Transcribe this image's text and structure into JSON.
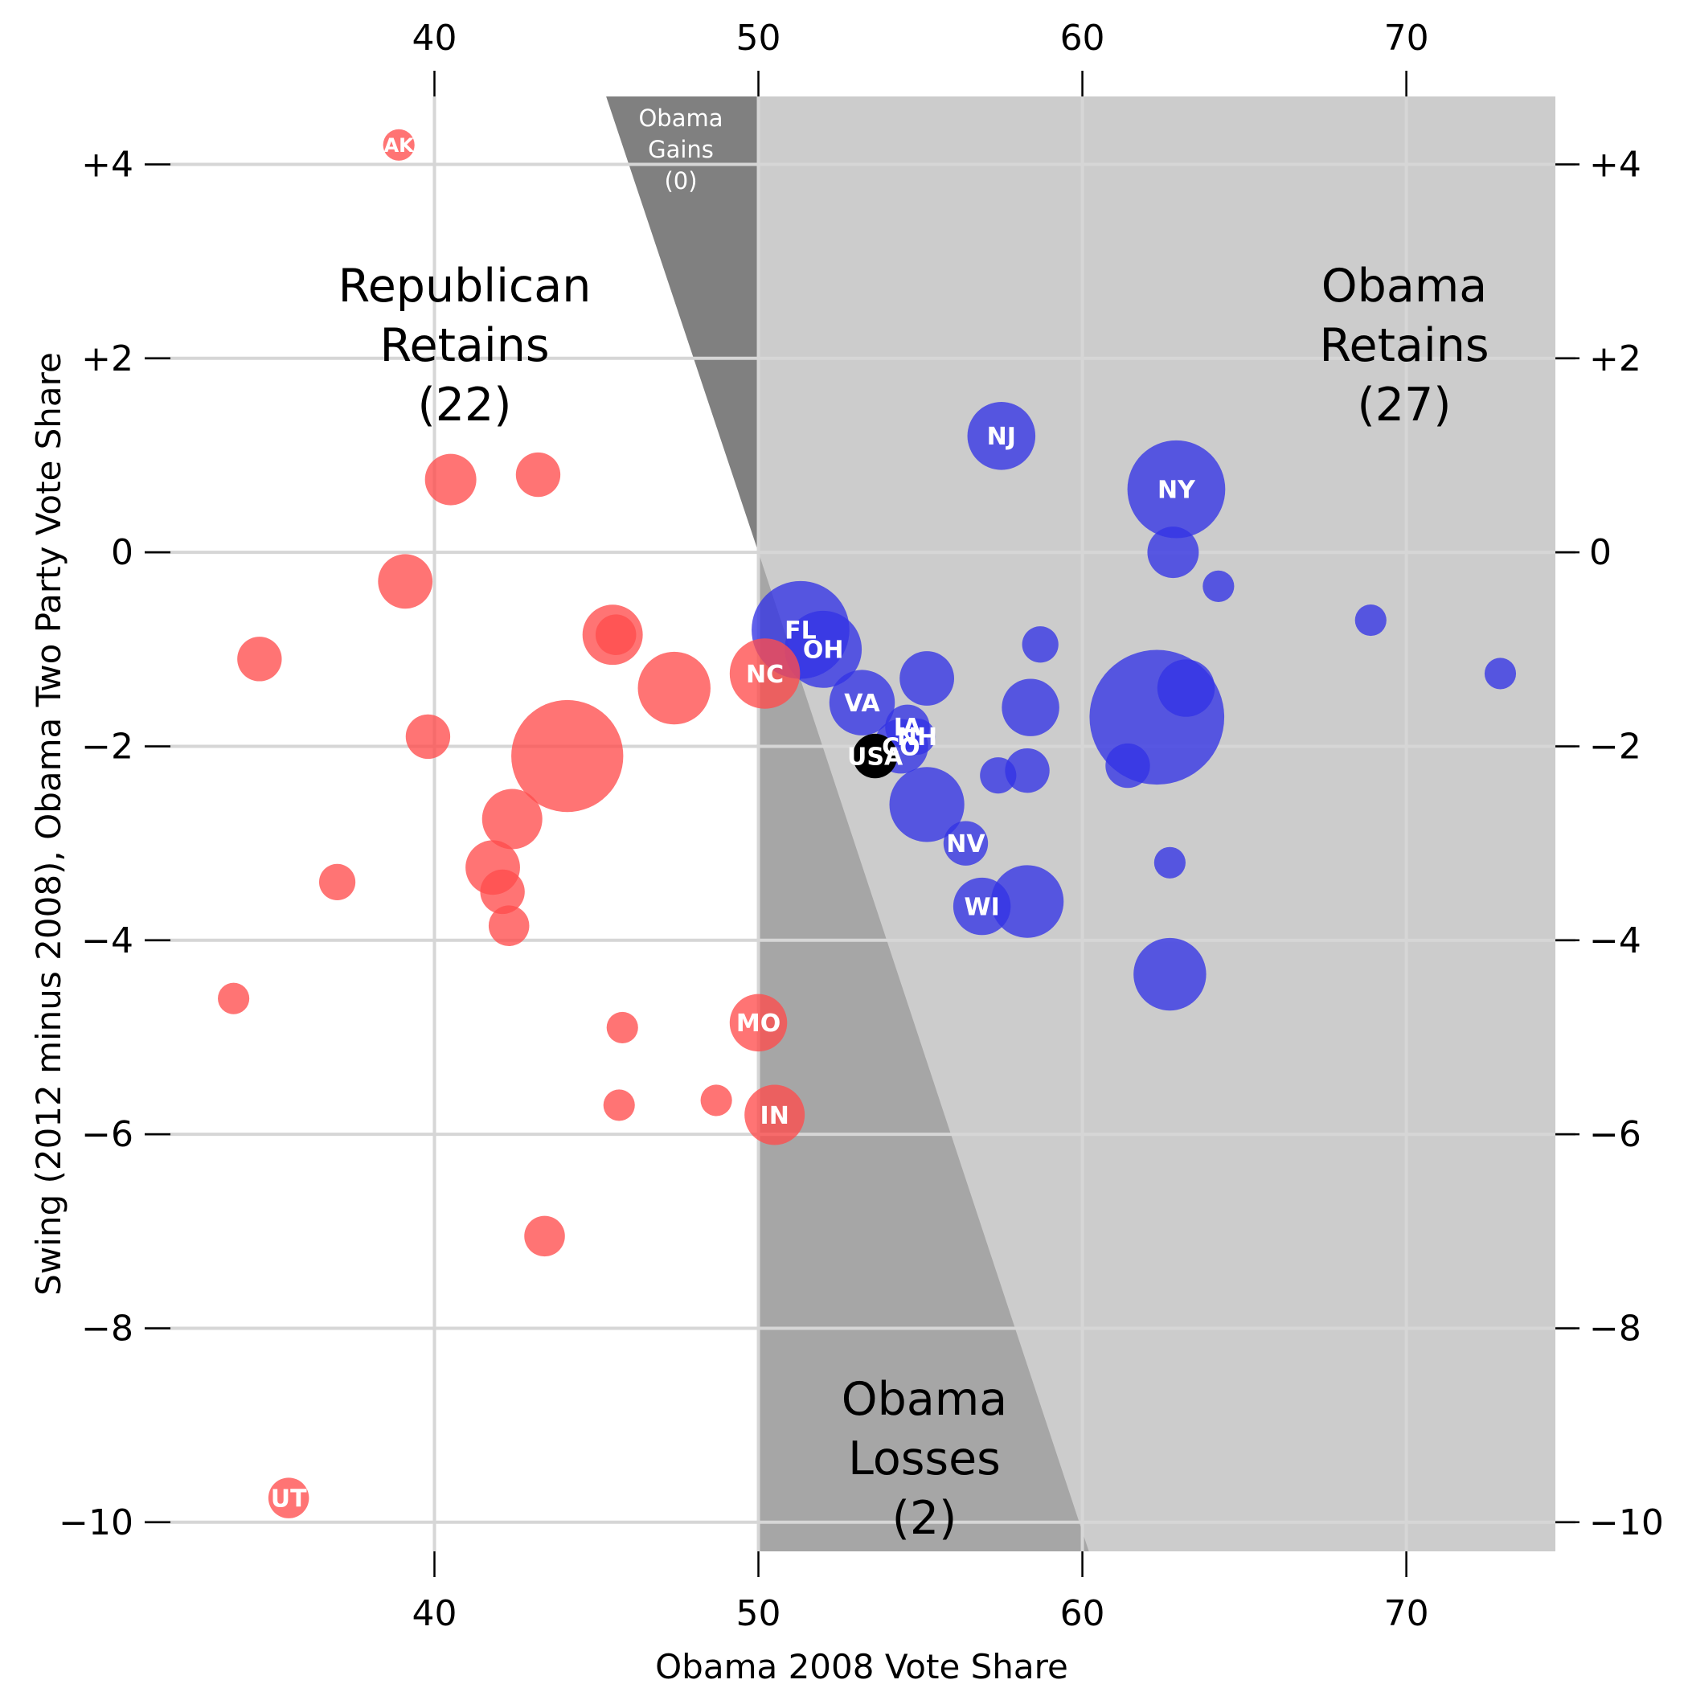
{
  "chart_data": {
    "type": "scatter",
    "title": "",
    "xlabel": "Obama 2008 Vote Share",
    "ylabel": "Swing (2012 minus 2008), Obama Two Party Vote Share",
    "xlim": [
      31.8,
      74.6
    ],
    "ylim": [
      -10.3,
      4.7
    ],
    "xticks": [
      {
        "value": 40,
        "label": "40"
      },
      {
        "value": 50,
        "label": "50"
      },
      {
        "value": 60,
        "label": "60"
      },
      {
        "value": 70,
        "label": "70"
      }
    ],
    "yticks": [
      {
        "value": 4,
        "label": "+4"
      },
      {
        "value": 2,
        "label": "+2"
      },
      {
        "value": 0,
        "label": "0"
      },
      {
        "value": -2,
        "label": "−2"
      },
      {
        "value": -4,
        "label": "−4"
      },
      {
        "value": -6,
        "label": "−6"
      },
      {
        "value": -8,
        "label": "−8"
      },
      {
        "value": -10,
        "label": "−10"
      }
    ],
    "grid": true,
    "colors": {
      "republican": "#ff4d4d",
      "obama": "#3333e6",
      "national": "#000000",
      "region_retains": "#cccccc",
      "region_losses": "#a6a6a6",
      "region_gains": "#808080",
      "grid": "#d6d6d6"
    },
    "regions": [
      {
        "id": "republican-retains",
        "label_lines": [
          "Republican",
          "Retains",
          "(22)"
        ]
      },
      {
        "id": "obama-retains",
        "label_lines": [
          "Obama",
          "Retains",
          "(27)"
        ]
      },
      {
        "id": "obama-losses",
        "label_lines": [
          "Obama",
          "Losses",
          "(2)"
        ]
      },
      {
        "id": "obama-gains",
        "label_lines": [
          "Obama",
          "Gains",
          "(0)"
        ]
      }
    ],
    "points": [
      {
        "x": 38.9,
        "y": 4.2,
        "size": 3,
        "party": "R",
        "label": "AK"
      },
      {
        "x": 35.5,
        "y": -9.75,
        "size": 5,
        "party": "R",
        "label": "UT"
      },
      {
        "x": 50.0,
        "y": -4.85,
        "size": 10,
        "party": "R",
        "label": "MO"
      },
      {
        "x": 50.5,
        "y": -5.8,
        "size": 11,
        "party": "R",
        "label": "IN"
      },
      {
        "x": 50.2,
        "y": -1.25,
        "size": 15,
        "party": "R",
        "label": "NC"
      },
      {
        "x": 40.5,
        "y": 0.75,
        "size": 8,
        "party": "R",
        "label": ""
      },
      {
        "x": 43.2,
        "y": 0.8,
        "size": 6,
        "party": "R",
        "label": ""
      },
      {
        "x": 39.1,
        "y": -0.3,
        "size": 9,
        "party": "R",
        "label": ""
      },
      {
        "x": 34.6,
        "y": -1.1,
        "size": 6,
        "party": "R",
        "label": ""
      },
      {
        "x": 45.5,
        "y": -0.85,
        "size": 11,
        "party": "R",
        "label": ""
      },
      {
        "x": 45.6,
        "y": -0.85,
        "size": 5,
        "party": "R",
        "label": ""
      },
      {
        "x": 47.4,
        "y": -1.4,
        "size": 16,
        "party": "R",
        "label": ""
      },
      {
        "x": 39.8,
        "y": -1.9,
        "size": 6,
        "party": "R",
        "label": ""
      },
      {
        "x": 44.1,
        "y": -2.1,
        "size": 38,
        "party": "R",
        "label": ""
      },
      {
        "x": 42.4,
        "y": -2.75,
        "size": 11,
        "party": "R",
        "label": ""
      },
      {
        "x": 41.8,
        "y": -3.25,
        "size": 9,
        "party": "R",
        "label": ""
      },
      {
        "x": 42.1,
        "y": -3.5,
        "size": 6,
        "party": "R",
        "label": ""
      },
      {
        "x": 42.3,
        "y": -3.85,
        "size": 5,
        "party": "R",
        "label": ""
      },
      {
        "x": 37.0,
        "y": -3.4,
        "size": 4,
        "party": "R",
        "label": ""
      },
      {
        "x": 33.8,
        "y": -4.6,
        "size": 3,
        "party": "R",
        "label": ""
      },
      {
        "x": 45.8,
        "y": -4.9,
        "size": 3,
        "party": "R",
        "label": ""
      },
      {
        "x": 45.7,
        "y": -5.7,
        "size": 3,
        "party": "R",
        "label": ""
      },
      {
        "x": 48.7,
        "y": -5.65,
        "size": 3,
        "party": "R",
        "label": ""
      },
      {
        "x": 43.4,
        "y": -7.05,
        "size": 5,
        "party": "R",
        "label": ""
      },
      {
        "x": 57.5,
        "y": 1.2,
        "size": 14,
        "party": "D",
        "label": "NJ"
      },
      {
        "x": 62.9,
        "y": 0.65,
        "size": 29,
        "party": "D",
        "label": "NY"
      },
      {
        "x": 51.3,
        "y": -0.8,
        "size": 29,
        "party": "D",
        "label": "FL"
      },
      {
        "x": 52.0,
        "y": -1.0,
        "size": 18,
        "party": "D",
        "label": "OH"
      },
      {
        "x": 53.2,
        "y": -1.55,
        "size": 13,
        "party": "D",
        "label": "VA"
      },
      {
        "x": 54.6,
        "y": -1.8,
        "size": 6,
        "party": "D",
        "label": "IA"
      },
      {
        "x": 54.4,
        "y": -2.0,
        "size": 9,
        "party": "D",
        "label": "CO"
      },
      {
        "x": 54.9,
        "y": -1.9,
        "size": 4,
        "party": "D",
        "label": "NH"
      },
      {
        "x": 56.4,
        "y": -3.0,
        "size": 6,
        "party": "D",
        "label": "NV"
      },
      {
        "x": 56.9,
        "y": -3.65,
        "size": 10,
        "party": "D",
        "label": "WI"
      },
      {
        "x": 62.8,
        "y": 0.0,
        "size": 8,
        "party": "D",
        "label": ""
      },
      {
        "x": 64.2,
        "y": -0.35,
        "size": 3,
        "party": "D",
        "label": ""
      },
      {
        "x": 68.9,
        "y": -0.7,
        "size": 3,
        "party": "D",
        "label": ""
      },
      {
        "x": 72.9,
        "y": -1.25,
        "size": 3,
        "party": "D",
        "label": ""
      },
      {
        "x": 55.2,
        "y": -1.3,
        "size": 9,
        "party": "D",
        "label": ""
      },
      {
        "x": 58.7,
        "y": -0.95,
        "size": 4,
        "party": "D",
        "label": ""
      },
      {
        "x": 58.4,
        "y": -1.6,
        "size": 10,
        "party": "D",
        "label": ""
      },
      {
        "x": 62.3,
        "y": -1.7,
        "size": 55,
        "party": "D",
        "label": ""
      },
      {
        "x": 63.2,
        "y": -1.4,
        "size": 10,
        "party": "D",
        "label": ""
      },
      {
        "x": 61.4,
        "y": -2.2,
        "size": 6,
        "party": "D",
        "label": ""
      },
      {
        "x": 57.4,
        "y": -2.3,
        "size": 4,
        "party": "D",
        "label": ""
      },
      {
        "x": 58.3,
        "y": -2.25,
        "size": 6,
        "party": "D",
        "label": ""
      },
      {
        "x": 55.2,
        "y": -2.6,
        "size": 17,
        "party": "D",
        "label": ""
      },
      {
        "x": 58.3,
        "y": -3.6,
        "size": 16,
        "party": "D",
        "label": ""
      },
      {
        "x": 62.7,
        "y": -3.2,
        "size": 3,
        "party": "D",
        "label": ""
      },
      {
        "x": 62.7,
        "y": -4.35,
        "size": 16,
        "party": "D",
        "label": ""
      },
      {
        "x": 53.6,
        "y": -2.1,
        "size": 6,
        "party": "N",
        "label": "USA"
      }
    ]
  }
}
